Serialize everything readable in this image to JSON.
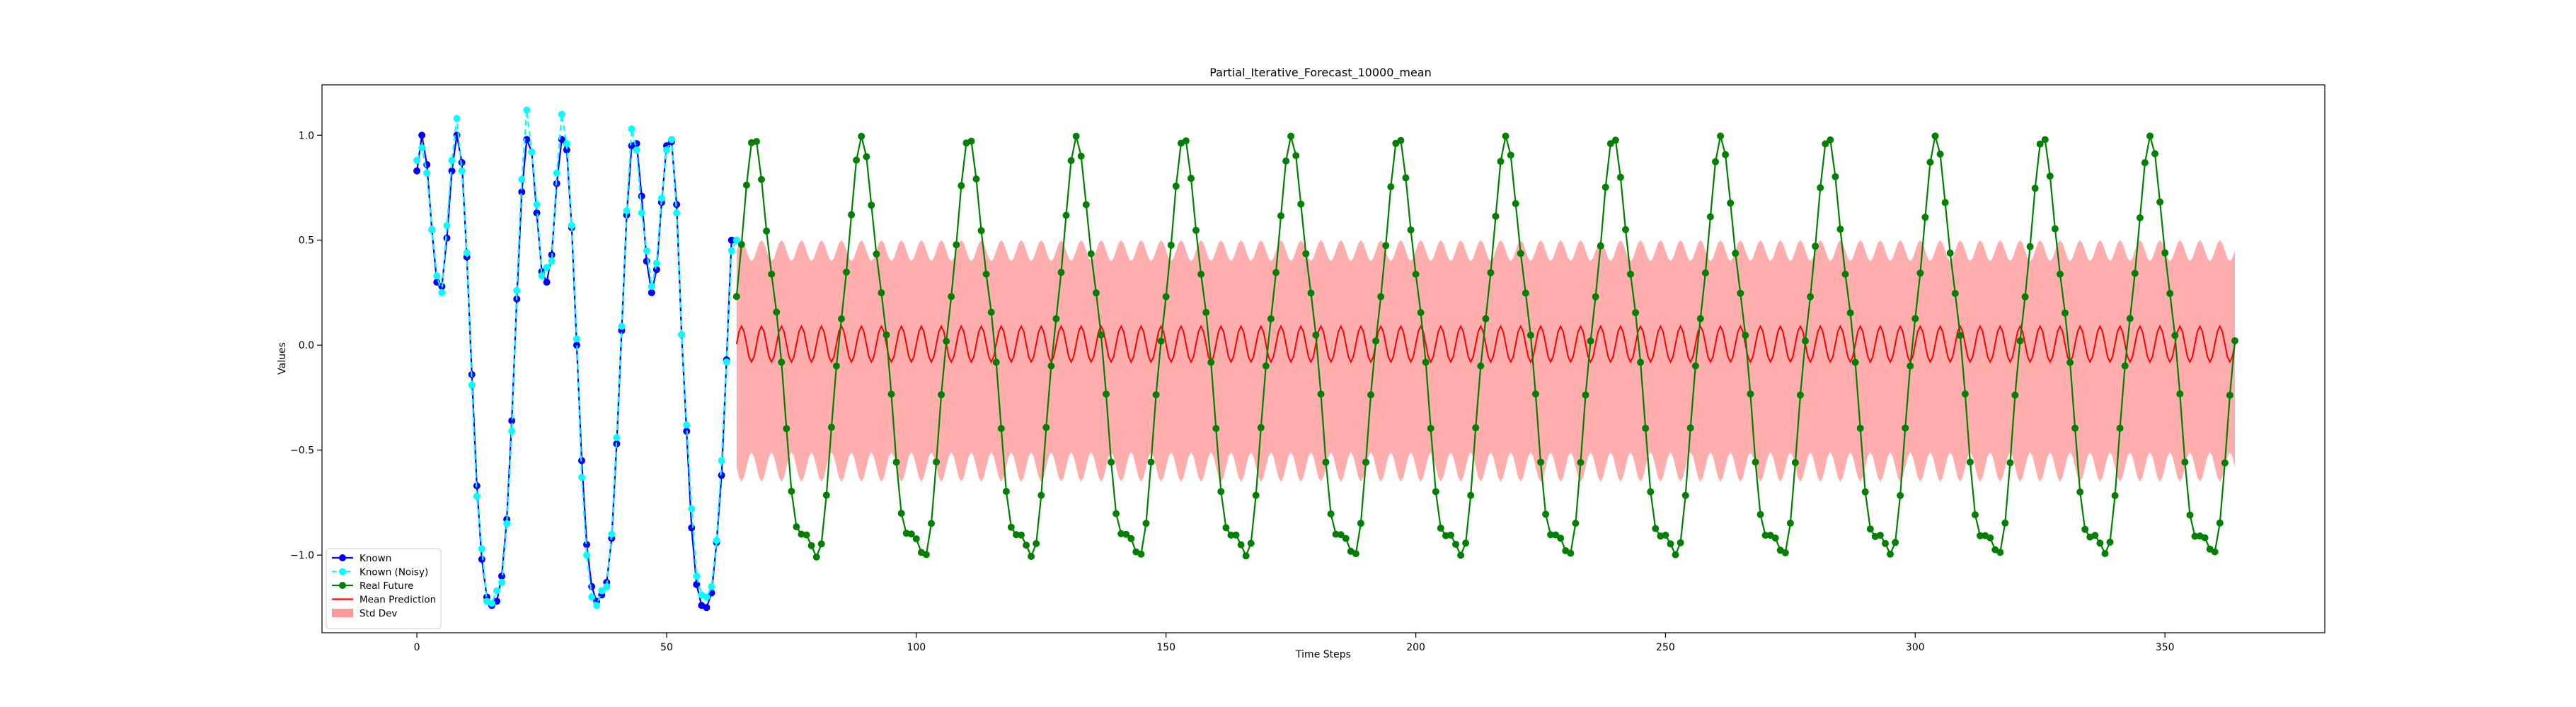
{
  "chart_data": {
    "type": "line",
    "title": "Partial_Iterative_Forecast_10000_mean",
    "xlabel": "Time Steps",
    "ylabel": "Values",
    "xlim": [
      -19,
      382
    ],
    "ylim": [
      -1.37,
      1.24
    ],
    "x_ticks": [
      0,
      50,
      100,
      150,
      200,
      250,
      300,
      350
    ],
    "y_ticks": [
      -1.0,
      -0.5,
      0.0,
      0.5,
      1.0
    ],
    "x_tick_labels": [
      "0",
      "50",
      "100",
      "150",
      "200",
      "250",
      "300",
      "350"
    ],
    "y_tick_labels": [
      "−1.0",
      "−0.5",
      "0.0",
      "0.5",
      "1.0"
    ],
    "grid": false,
    "legend_position": "lower-left",
    "series": [
      {
        "name": "Known",
        "color": "#0000ff",
        "style": "solid line with circle markers",
        "x_range": [
          0,
          64
        ],
        "x": [
          0,
          1,
          2,
          3,
          4,
          5,
          6,
          7,
          8,
          9,
          10,
          11,
          12,
          13,
          14,
          15,
          16,
          17,
          18,
          19,
          20,
          21,
          22,
          23,
          24,
          25,
          26,
          27,
          28,
          29,
          30,
          31,
          32,
          33,
          34,
          35,
          36,
          37,
          38,
          39,
          40,
          41,
          42,
          43,
          44,
          45,
          46,
          47,
          48,
          49,
          50,
          51,
          52,
          53,
          54,
          55,
          56,
          57,
          58,
          59,
          60,
          61,
          62,
          63,
          64
        ],
        "values": [
          0.83,
          1.0,
          0.86,
          0.55,
          0.3,
          0.28,
          0.51,
          0.83,
          1.0,
          0.87,
          0.42,
          -0.14,
          -0.67,
          -1.02,
          -1.2,
          -1.24,
          -1.22,
          -1.1,
          -0.83,
          -0.36,
          0.22,
          0.73,
          0.98,
          0.92,
          0.63,
          0.35,
          0.3,
          0.43,
          0.77,
          0.98,
          0.93,
          0.56,
          0.0,
          -0.55,
          -0.95,
          -1.15,
          -1.22,
          -1.19,
          -1.13,
          -0.92,
          -0.47,
          0.07,
          0.62,
          0.95,
          0.96,
          0.71,
          0.4,
          0.25,
          0.36,
          0.68,
          0.95,
          0.97,
          0.67,
          0.05,
          -0.41,
          -0.87,
          -1.14,
          -1.24,
          -1.25,
          -1.18,
          -0.94,
          -0.62,
          -0.07,
          0.5,
          0.5
        ]
      },
      {
        "name": "Known (Noisy)",
        "color": "#00ffff",
        "style": "dashed line with circle markers",
        "x_range": [
          0,
          64
        ],
        "x": [
          0,
          1,
          2,
          3,
          4,
          5,
          6,
          7,
          8,
          9,
          10,
          11,
          12,
          13,
          14,
          15,
          16,
          17,
          18,
          19,
          20,
          21,
          22,
          23,
          24,
          25,
          26,
          27,
          28,
          29,
          30,
          31,
          32,
          33,
          34,
          35,
          36,
          37,
          38,
          39,
          40,
          41,
          42,
          43,
          44,
          45,
          46,
          47,
          48,
          49,
          50,
          51,
          52,
          53,
          54,
          55,
          56,
          57,
          58,
          59,
          60,
          61,
          62,
          63,
          64
        ],
        "values": [
          0.88,
          0.94,
          0.82,
          0.55,
          0.33,
          0.25,
          0.57,
          0.88,
          1.08,
          0.83,
          0.44,
          -0.19,
          -0.72,
          -0.97,
          -1.22,
          -1.23,
          -1.17,
          -1.13,
          -0.85,
          -0.41,
          0.26,
          0.79,
          1.12,
          0.92,
          0.67,
          0.33,
          0.37,
          0.4,
          0.82,
          1.1,
          0.96,
          0.57,
          0.03,
          -0.63,
          -1.0,
          -1.2,
          -1.24,
          -1.17,
          -1.15,
          -0.9,
          -0.44,
          0.09,
          0.64,
          1.03,
          0.93,
          0.63,
          0.45,
          0.28,
          0.39,
          0.7,
          0.93,
          0.98,
          0.63,
          0.05,
          -0.38,
          -0.78,
          -1.1,
          -1.19,
          -1.2,
          -1.15,
          -0.93,
          -0.55,
          -0.08,
          0.45,
          0.5
        ]
      },
      {
        "name": "Real Future",
        "color": "#008000",
        "style": "solid line with circle markers",
        "x_range": [
          64,
          364
        ],
        "values_description": "damped sine pattern, period approx 21.5 steps, oscillating between about -1.25 and 1.0"
      },
      {
        "name": "Mean Prediction",
        "color": "#ff0000",
        "style": "solid line",
        "x_range": [
          64,
          364
        ],
        "values_description": "rapid oscillation with period approx 4 steps between about -0.08 and 0.09"
      },
      {
        "name": "Std Dev",
        "color": "#ff9999",
        "style": "filled band",
        "x_range": [
          64,
          364
        ],
        "values_description": "band from about -0.65 to 0.5, edges rippling with period approx 4 steps"
      }
    ],
    "legend": [
      {
        "label": "Known",
        "color": "#0000ff",
        "kind": "line-marker"
      },
      {
        "label": "Known (Noisy)",
        "color": "#00ffff",
        "kind": "dashed-marker"
      },
      {
        "label": "Real Future",
        "color": "#008000",
        "kind": "line-marker"
      },
      {
        "label": "Mean Prediction",
        "color": "#ff0000",
        "kind": "line"
      },
      {
        "label": "Std Dev",
        "color": "#ff9999",
        "kind": "patch"
      }
    ]
  }
}
